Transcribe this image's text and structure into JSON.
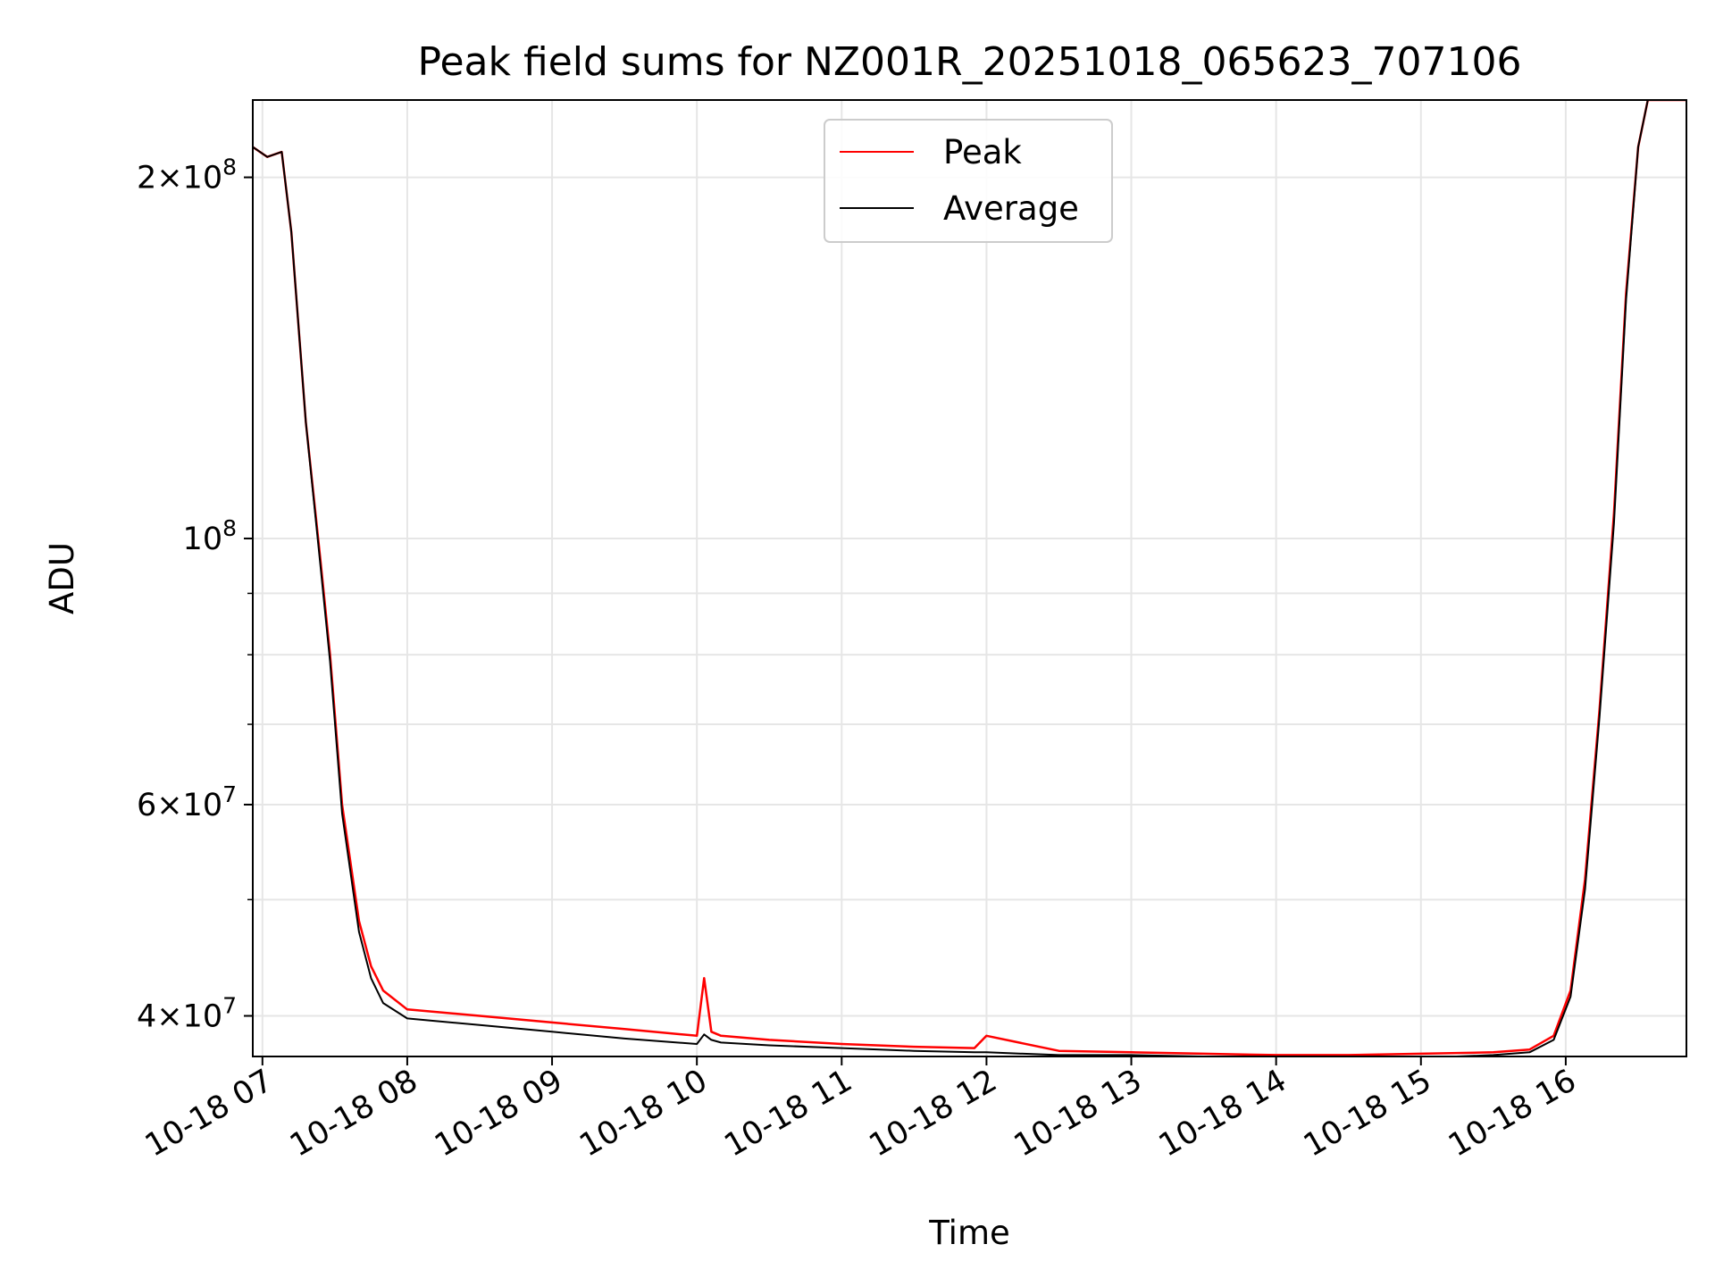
{
  "chart_data": {
    "type": "line",
    "title": "Peak field sums for NZ001R_20251018_065623_707106",
    "xlabel": "Time",
    "ylabel": "ADU",
    "xlim": [
      "2025-10-18 06:56",
      "2025-10-18 16:50"
    ],
    "ylim": [
      37000000,
      232000000
    ],
    "yscale": "log",
    "grid": true,
    "legend": "top-center",
    "x_ticks": [
      "10-18 07",
      "10-18 08",
      "10-18 09",
      "10-18 10",
      "10-18 11",
      "10-18 12",
      "10-18 13",
      "10-18 14",
      "10-18 15",
      "10-18 16"
    ],
    "y_ticks": [
      {
        "value": 200000000,
        "mantissa": "2",
        "exponent": "8"
      },
      {
        "value": 100000000,
        "mantissa": "",
        "exponent": "8"
      },
      {
        "value": 60000000,
        "mantissa": "6",
        "exponent": "7"
      },
      {
        "value": 40000000,
        "mantissa": "4",
        "exponent": "7"
      }
    ],
    "series": [
      {
        "name": "Peak",
        "color": "#ff0000",
        "x": [
          "2025-10-18 06:56",
          "2025-10-18 07:02",
          "2025-10-18 07:08",
          "2025-10-18 07:12",
          "2025-10-18 07:18",
          "2025-10-18 07:24",
          "2025-10-18 07:28",
          "2025-10-18 07:33",
          "2025-10-18 07:40",
          "2025-10-18 07:45",
          "2025-10-18 07:50",
          "2025-10-18 08:00",
          "2025-10-18 08:30",
          "2025-10-18 09:00",
          "2025-10-18 09:30",
          "2025-10-18 10:00",
          "2025-10-18 10:03",
          "2025-10-18 10:06",
          "2025-10-18 10:10",
          "2025-10-18 10:30",
          "2025-10-18 11:00",
          "2025-10-18 11:30",
          "2025-10-18 11:55",
          "2025-10-18 12:00",
          "2025-10-18 12:30",
          "2025-10-18 13:00",
          "2025-10-18 13:30",
          "2025-10-18 14:00",
          "2025-10-18 14:30",
          "2025-10-18 15:00",
          "2025-10-18 15:30",
          "2025-10-18 15:45",
          "2025-10-18 15:55",
          "2025-10-18 16:02",
          "2025-10-18 16:08",
          "2025-10-18 16:14",
          "2025-10-18 16:20",
          "2025-10-18 16:25",
          "2025-10-18 16:30",
          "2025-10-18 16:34",
          "2025-10-18 16:50"
        ],
        "values": [
          212000000,
          208000000,
          210000000,
          180000000,
          125000000,
          96000000,
          80000000,
          60000000,
          48000000,
          44000000,
          42000000,
          40500000,
          40000000,
          39500000,
          39000000,
          38500000,
          43000000,
          38800000,
          38500000,
          38200000,
          37900000,
          37700000,
          37600000,
          38500000,
          37400000,
          37300000,
          37200000,
          37100000,
          37100000,
          37200000,
          37300000,
          37500000,
          38500000,
          42000000,
          52000000,
          72000000,
          105000000,
          160000000,
          212000000,
          232000000,
          232000000
        ]
      },
      {
        "name": "Average",
        "color": "#000000",
        "x": [
          "2025-10-18 06:56",
          "2025-10-18 07:02",
          "2025-10-18 07:08",
          "2025-10-18 07:12",
          "2025-10-18 07:18",
          "2025-10-18 07:24",
          "2025-10-18 07:28",
          "2025-10-18 07:33",
          "2025-10-18 07:40",
          "2025-10-18 07:45",
          "2025-10-18 07:50",
          "2025-10-18 08:00",
          "2025-10-18 08:30",
          "2025-10-18 09:00",
          "2025-10-18 09:30",
          "2025-10-18 10:00",
          "2025-10-18 10:03",
          "2025-10-18 10:06",
          "2025-10-18 10:10",
          "2025-10-18 10:30",
          "2025-10-18 11:00",
          "2025-10-18 11:30",
          "2025-10-18 11:55",
          "2025-10-18 12:00",
          "2025-10-18 12:30",
          "2025-10-18 13:00",
          "2025-10-18 13:30",
          "2025-10-18 14:00",
          "2025-10-18 14:30",
          "2025-10-18 15:00",
          "2025-10-18 15:30",
          "2025-10-18 15:45",
          "2025-10-18 15:55",
          "2025-10-18 16:02",
          "2025-10-18 16:08",
          "2025-10-18 16:14",
          "2025-10-18 16:20",
          "2025-10-18 16:25",
          "2025-10-18 16:30",
          "2025-10-18 16:34",
          "2025-10-18 16:50"
        ],
        "values": [
          212000000,
          208000000,
          210000000,
          180000000,
          125000000,
          95000000,
          79000000,
          59000000,
          47000000,
          43000000,
          41000000,
          39800000,
          39300000,
          38800000,
          38300000,
          37900000,
          38600000,
          38200000,
          38000000,
          37800000,
          37600000,
          37400000,
          37300000,
          37300000,
          37100000,
          37100000,
          37000000,
          36900000,
          37000000,
          36900000,
          37100000,
          37300000,
          38200000,
          41500000,
          51000000,
          71000000,
          103000000,
          158000000,
          212000000,
          232000000,
          232000000
        ]
      }
    ]
  }
}
